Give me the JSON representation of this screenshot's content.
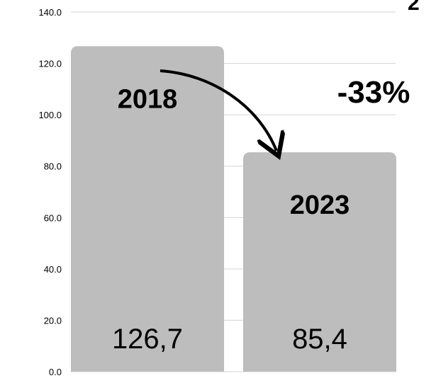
{
  "chart_data": {
    "type": "bar",
    "categories": [
      "2018",
      "2023"
    ],
    "values": [
      126.7,
      85.4
    ],
    "value_labels": [
      "126,7",
      "85,4"
    ],
    "ylim": [
      0,
      140
    ],
    "yticks": [
      "0.0",
      "20.0",
      "40.0",
      "60.0",
      "80.0",
      "100.0",
      "120.0",
      "140.0"
    ],
    "ytick_values": [
      0,
      20,
      40,
      60,
      80,
      100,
      120,
      140
    ],
    "grid": true,
    "bar_color": "#bdbdbd",
    "annotation": "-33%",
    "title_partial": "2"
  }
}
